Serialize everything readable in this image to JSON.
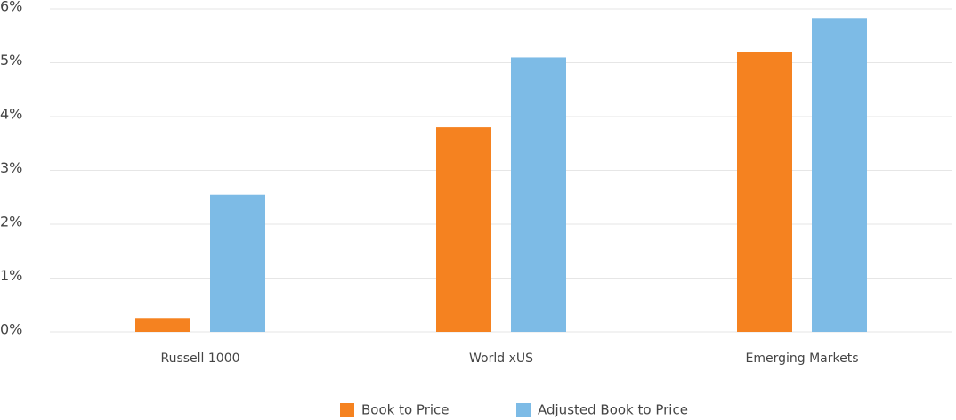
{
  "chart_data": {
    "type": "bar",
    "categories": [
      "Russell 1000",
      "World xUS",
      "Emerging Markets"
    ],
    "series": [
      {
        "name": "Book to Price",
        "color": "#f58220",
        "values": [
          0.26,
          3.8,
          5.2
        ]
      },
      {
        "name": "Adjusted Book to Price",
        "color": "#7dbbe6",
        "values": [
          2.55,
          5.1,
          5.83
        ]
      }
    ],
    "ylim": [
      0,
      6
    ],
    "yticks": [
      {
        "value": 0,
        "label": "0%"
      },
      {
        "value": 1,
        "label": "1%"
      },
      {
        "value": 2,
        "label": "2%"
      },
      {
        "value": 3,
        "label": "3%"
      },
      {
        "value": 4,
        "label": "4%"
      },
      {
        "value": 5,
        "label": "5%"
      },
      {
        "value": 6,
        "label": "6%"
      }
    ],
    "grid": true,
    "legend": "bottom"
  }
}
